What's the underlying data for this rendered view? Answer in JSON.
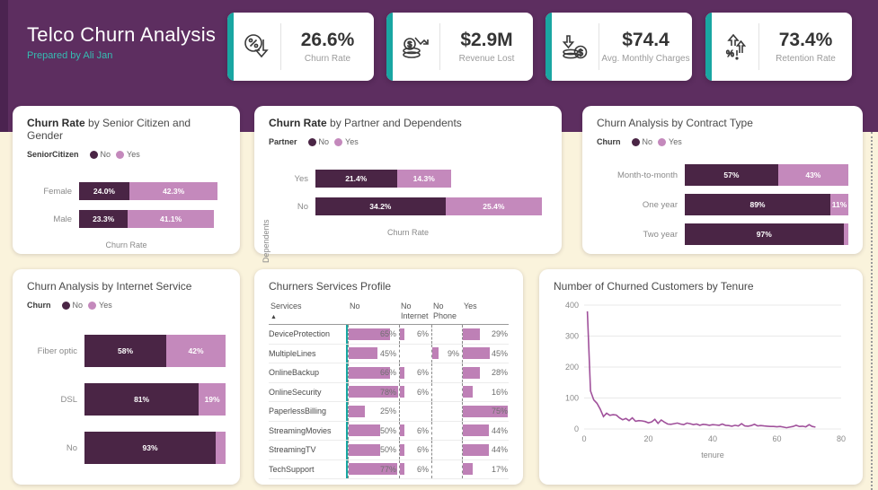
{
  "header": {
    "title": "Telco Churn Analysis",
    "subtitle": "Prepared by Ali Jan"
  },
  "kpis": [
    {
      "icon": "percent-cycle-down-icon",
      "value": "26.6%",
      "label": "Churn Rate"
    },
    {
      "icon": "coins-decline-arrow-icon",
      "value": "$2.9M",
      "label": "Revenue Lost"
    },
    {
      "icon": "coins-down-arrow-icon",
      "value": "$74.4",
      "label": "Avg. Monthly Charges"
    },
    {
      "icon": "growth-arrows-percent-icon",
      "value": "73.4%",
      "label": "Retention Rate"
    }
  ],
  "colors": {
    "page_bg": "#FAF3DC",
    "header_bg": "#5D2E60",
    "accent": "#19A6A2",
    "no": "#4A2545",
    "yes": "#C489BC",
    "table_bar": "#BE80B6",
    "line": "#A0519B"
  },
  "chart_data": [
    {
      "id": "senior",
      "type": "bar",
      "title_bold": "Churn Rate",
      "title_rest": "by Senior Citizen and Gender",
      "legend_title": "SeniorCitizen",
      "legend": [
        "No",
        "Yes"
      ],
      "xlabel": "Churn Rate",
      "axis_max": 70,
      "categories": [
        "Female",
        "Male"
      ],
      "series": [
        {
          "name": "No",
          "values": [
            24.0,
            23.3
          ],
          "labels": [
            "24.0%",
            "23.3%"
          ]
        },
        {
          "name": "Yes",
          "values": [
            42.3,
            41.1
          ],
          "labels": [
            "42.3%",
            "41.1%"
          ]
        }
      ]
    },
    {
      "id": "partner",
      "type": "bar",
      "title_bold": "Churn Rate",
      "title_rest": "by Partner and Dependents",
      "legend_title": "Partner",
      "legend": [
        "No",
        "Yes"
      ],
      "xlabel": "Churn Rate",
      "ylabel": "Dependents",
      "axis_max": 61,
      "categories": [
        "Yes",
        "No"
      ],
      "series": [
        {
          "name": "No",
          "values": [
            21.4,
            34.2
          ],
          "labels": [
            "21.4%",
            "34.2%"
          ]
        },
        {
          "name": "Yes",
          "values": [
            14.3,
            25.4
          ],
          "labels": [
            "14.3%",
            "25.4%"
          ]
        }
      ]
    },
    {
      "id": "contract",
      "type": "bar",
      "title_bold": "",
      "title_rest": "Churn Analysis by Contract Type",
      "legend_title": "Churn",
      "legend": [
        "No",
        "Yes"
      ],
      "xlabel": "",
      "axis_max": 100,
      "categories": [
        "Month-to-month",
        "One year",
        "Two year"
      ],
      "series": [
        {
          "name": "No",
          "values": [
            57,
            89,
            97
          ],
          "labels": [
            "57%",
            "89%",
            "97%"
          ]
        },
        {
          "name": "Yes",
          "values": [
            43,
            11,
            3
          ],
          "labels": [
            "43%",
            "11%",
            ""
          ]
        }
      ]
    },
    {
      "id": "internet",
      "type": "bar",
      "title_bold": "",
      "title_rest": "Churn Analysis by Internet Service",
      "legend_title": "Churn",
      "legend": [
        "No",
        "Yes"
      ],
      "xlabel": "",
      "axis_max": 100,
      "categories": [
        "Fiber optic",
        "DSL",
        "No"
      ],
      "series": [
        {
          "name": "No",
          "values": [
            58,
            81,
            93
          ],
          "labels": [
            "58%",
            "81%",
            "93%"
          ]
        },
        {
          "name": "Yes",
          "values": [
            42,
            19,
            7
          ],
          "labels": [
            "42%",
            "19%",
            ""
          ]
        }
      ]
    },
    {
      "id": "services",
      "type": "table",
      "title": "Churners Services Profile",
      "columns": [
        "Services",
        "No",
        "No Internet",
        "No Phone",
        "Yes"
      ],
      "col_max": {
        "no": 80,
        "no_internet": 40,
        "no_phone": 40,
        "yes": 80
      },
      "rows": [
        {
          "name": "DeviceProtection",
          "no": 65,
          "no_internet": 6,
          "no_phone": null,
          "yes": 29
        },
        {
          "name": "MultipleLines",
          "no": 45,
          "no_internet": null,
          "no_phone": 9,
          "yes": 45
        },
        {
          "name": "OnlineBackup",
          "no": 66,
          "no_internet": 6,
          "no_phone": null,
          "yes": 28
        },
        {
          "name": "OnlineSecurity",
          "no": 78,
          "no_internet": 6,
          "no_phone": null,
          "yes": 16
        },
        {
          "name": "PaperlessBilling",
          "no": 25,
          "no_internet": null,
          "no_phone": null,
          "yes": 75
        },
        {
          "name": "StreamingMovies",
          "no": 50,
          "no_internet": 6,
          "no_phone": null,
          "yes": 44
        },
        {
          "name": "StreamingTV",
          "no": 50,
          "no_internet": 6,
          "no_phone": null,
          "yes": 44
        },
        {
          "name": "TechSupport",
          "no": 77,
          "no_internet": 6,
          "no_phone": null,
          "yes": 17
        }
      ]
    },
    {
      "id": "tenure",
      "type": "line",
      "title": "Number of Churned Customers by Tenure",
      "xlabel": "tenure",
      "x_ticks": [
        0,
        20,
        40,
        60,
        80
      ],
      "y_ticks": [
        0,
        100,
        200,
        300,
        400
      ],
      "xlim": [
        0,
        80
      ],
      "ylim": [
        0,
        400
      ],
      "x_start": 1,
      "values": [
        380,
        123,
        94,
        83,
        64,
        40,
        51,
        44,
        46,
        45,
        36,
        30,
        34,
        27,
        36,
        25,
        27,
        26,
        24,
        20,
        23,
        31,
        18,
        29,
        22,
        16,
        15,
        17,
        19,
        16,
        14,
        19,
        17,
        14,
        16,
        12,
        15,
        14,
        12,
        14,
        13,
        12,
        16,
        12,
        11,
        9,
        12,
        10,
        17,
        10,
        9,
        11,
        15,
        10,
        11,
        10,
        9,
        8,
        8,
        7,
        8,
        6,
        4,
        6,
        8,
        12,
        8,
        9,
        7,
        14,
        8,
        6
      ]
    }
  ]
}
